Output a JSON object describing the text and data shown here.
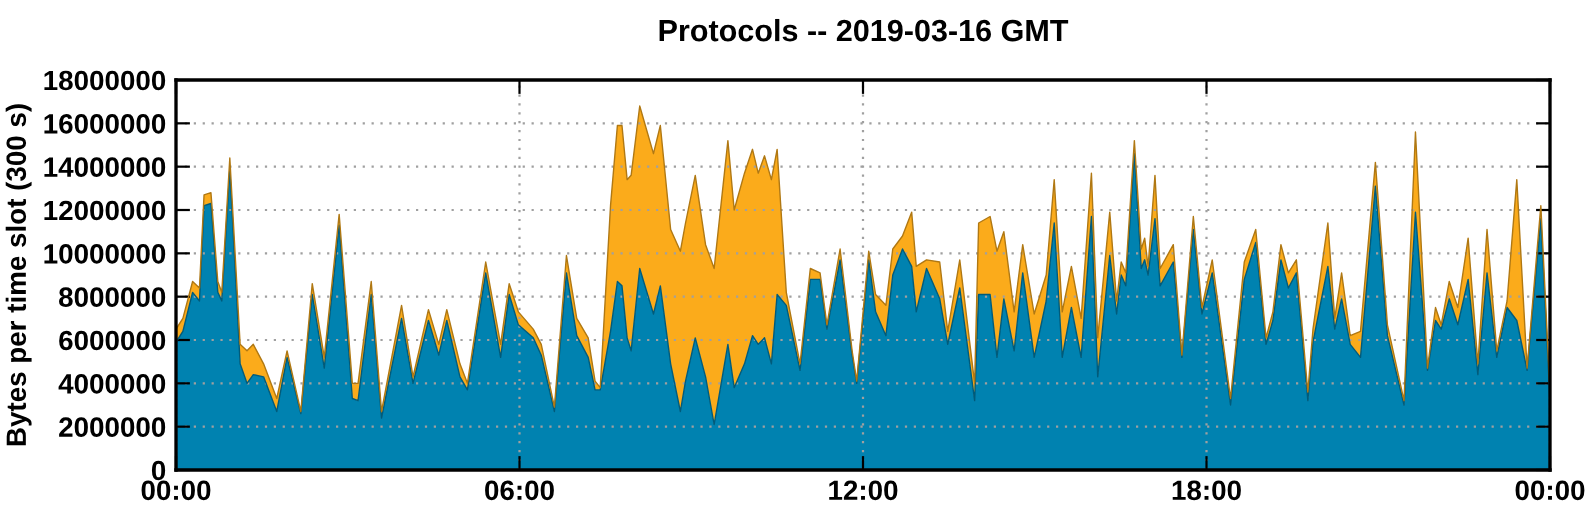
{
  "chart_data": {
    "type": "area",
    "stacked": true,
    "title": "Protocols -- 2019-03-16 GMT",
    "ylabel": "Bytes per time slot (300 s)",
    "x": [
      0,
      0.12,
      0.29,
      0.41,
      0.49,
      0.61,
      0.73,
      0.8,
      0.94,
      1.12,
      1.24,
      1.35,
      1.53,
      1.76,
      1.94,
      2.18,
      2.38,
      2.59,
      2.85,
      3.08,
      3.18,
      3.41,
      3.59,
      3.94,
      4.14,
      4.41,
      4.59,
      4.73,
      4.96,
      5.09,
      5.41,
      5.67,
      5.82,
      5.98,
      6.24,
      6.38,
      6.61,
      6.82,
      7.0,
      7.2,
      7.32,
      7.41,
      7.59,
      7.71,
      7.79,
      7.88,
      7.95,
      8.1,
      8.34,
      8.46,
      8.64,
      8.81,
      8.9,
      9.07,
      9.25,
      9.4,
      9.64,
      9.75,
      9.93,
      10.07,
      10.17,
      10.28,
      10.4,
      10.5,
      10.66,
      10.9,
      11.08,
      11.25,
      11.37,
      11.6,
      11.81,
      11.89,
      12.1,
      12.22,
      12.4,
      12.52,
      12.69,
      12.85,
      12.93,
      13.11,
      13.34,
      13.48,
      13.69,
      13.95,
      14.02,
      14.22,
      14.34,
      14.46,
      14.64,
      14.79,
      14.99,
      15.2,
      15.34,
      15.48,
      15.64,
      15.81,
      15.99,
      16.1,
      16.31,
      16.43,
      16.51,
      16.59,
      16.74,
      16.86,
      16.92,
      16.98,
      17.1,
      17.19,
      17.42,
      17.57,
      17.77,
      17.92,
      18.1,
      18.42,
      18.66,
      18.86,
      19.04,
      19.16,
      19.3,
      19.43,
      19.57,
      19.77,
      19.86,
      20.12,
      20.24,
      20.36,
      20.51,
      20.69,
      20.95,
      21.16,
      21.45,
      21.65,
      21.86,
      22.0,
      22.1,
      22.24,
      22.39,
      22.57,
      22.74,
      22.9,
      23.07,
      23.25,
      23.42,
      23.6,
      23.84,
      24.0
    ],
    "series": [
      {
        "color": "#0082b0",
        "values": [
          5900000,
          6400000,
          8200000,
          7800000,
          12200000,
          12300000,
          8200000,
          7800000,
          13900000,
          4900000,
          4000000,
          4400000,
          4300000,
          2700000,
          5200000,
          2600000,
          8100000,
          4700000,
          11300000,
          3300000,
          3200000,
          8100000,
          2400000,
          7000000,
          4000000,
          6900000,
          5300000,
          6900000,
          4300000,
          3700000,
          9100000,
          5200000,
          8100000,
          6700000,
          6100000,
          5300000,
          2700000,
          9100000,
          6200000,
          5200000,
          3700000,
          3700000,
          6400000,
          8700000,
          8500000,
          6100000,
          5500000,
          9300000,
          7200000,
          8500000,
          4900000,
          2700000,
          4100000,
          6100000,
          4300000,
          2100000,
          5800000,
          3800000,
          4900000,
          6200000,
          5800000,
          6100000,
          4900000,
          8100000,
          7600000,
          4600000,
          8800000,
          8800000,
          6500000,
          9700000,
          5300000,
          4000000,
          9700000,
          7300000,
          6200000,
          9000000,
          10200000,
          9400000,
          7300000,
          9300000,
          7900000,
          5800000,
          8400000,
          3200000,
          8100000,
          8100000,
          5200000,
          7900000,
          5500000,
          9100000,
          5200000,
          7800000,
          11400000,
          5200000,
          7500000,
          5200000,
          11700000,
          4300000,
          9900000,
          7200000,
          9000000,
          8500000,
          14600000,
          9300000,
          9700000,
          9000000,
          11600000,
          8500000,
          9600000,
          5200000,
          11100000,
          7200000,
          9100000,
          3000000,
          8800000,
          10500000,
          5800000,
          6900000,
          9700000,
          8400000,
          9100000,
          3200000,
          5900000,
          9400000,
          6500000,
          7900000,
          5800000,
          5200000,
          13100000,
          6200000,
          3000000,
          11900000,
          4600000,
          6900000,
          6500000,
          7900000,
          6700000,
          8800000,
          4400000,
          9100000,
          5200000,
          7500000,
          6900000,
          4600000,
          11600000,
          3200000
        ]
      },
      {
        "color": "#fbab1b",
        "values": [
          600000,
          600000,
          500000,
          600000,
          500000,
          500000,
          500000,
          400000,
          500000,
          900000,
          1500000,
          1400000,
          600000,
          600000,
          300000,
          100000,
          500000,
          500000,
          500000,
          700000,
          800000,
          600000,
          300000,
          600000,
          300000,
          500000,
          500000,
          500000,
          600000,
          300000,
          500000,
          600000,
          500000,
          600000,
          400000,
          500000,
          200000,
          800000,
          800000,
          900000,
          400000,
          100000,
          5800000,
          7200000,
          7400000,
          7300000,
          8100000,
          7500000,
          7400000,
          7400000,
          6200000,
          7400000,
          7300000,
          7500000,
          6100000,
          7200000,
          9400000,
          8200000,
          8800000,
          8600000,
          7900000,
          8400000,
          8500000,
          6700000,
          600000,
          300000,
          500000,
          300000,
          200000,
          500000,
          200000,
          100000,
          400000,
          800000,
          1400000,
          1200000,
          600000,
          2500000,
          2100000,
          400000,
          1700000,
          600000,
          1300000,
          800000,
          3300000,
          3600000,
          4900000,
          3100000,
          1800000,
          1300000,
          2000000,
          1200000,
          2000000,
          2100000,
          1900000,
          1800000,
          2000000,
          1800000,
          2000000,
          600000,
          600000,
          600000,
          600000,
          900000,
          1000000,
          400000,
          2000000,
          800000,
          800000,
          100000,
          600000,
          300000,
          600000,
          300000,
          800000,
          600000,
          300000,
          400000,
          700000,
          700000,
          600000,
          400000,
          600000,
          2000000,
          500000,
          1200000,
          400000,
          1200000,
          1100000,
          500000,
          200000,
          3700000,
          100000,
          600000,
          200000,
          800000,
          800000,
          1900000,
          500000,
          2000000,
          300000,
          300000,
          6500000,
          100000,
          600000,
          400000
        ]
      }
    ],
    "xlim": [
      0,
      24
    ],
    "xticks": [
      {
        "value": 0,
        "label": "00:00"
      },
      {
        "value": 6,
        "label": "06:00"
      },
      {
        "value": 12,
        "label": "12:00"
      },
      {
        "value": 18,
        "label": "18:00"
      },
      {
        "value": 24,
        "label": "00:00"
      }
    ],
    "ylim": [
      0,
      18000000
    ],
    "yticks": [
      0,
      2000000,
      4000000,
      6000000,
      8000000,
      10000000,
      12000000,
      14000000,
      16000000,
      18000000
    ],
    "grid": true
  }
}
